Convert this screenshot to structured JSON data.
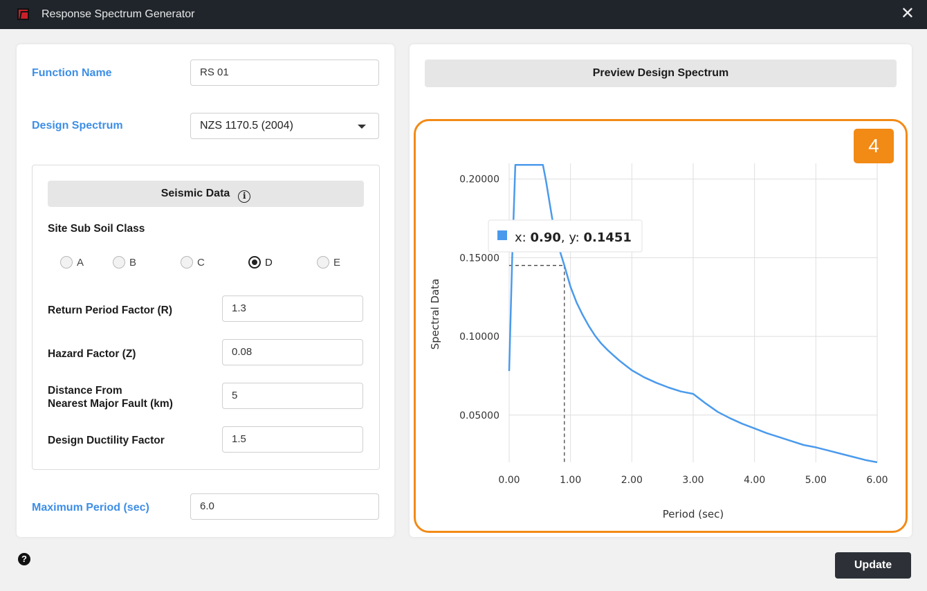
{
  "window": {
    "title": "Response Spectrum Generator",
    "close_glyph": "✕"
  },
  "form": {
    "function_name_label": "Function Name",
    "function_name_value": "RS 01",
    "design_spectrum_label": "Design Spectrum",
    "design_spectrum_value": "NZS 1170.5 (2004)",
    "seismic": {
      "header": "Seismic Data",
      "info_glyph": "i",
      "site_class_label": "Site Sub Soil Class",
      "site_classes": [
        "A",
        "B",
        "C",
        "D",
        "E"
      ],
      "selected_class": "D",
      "return_period_label": "Return Period Factor (R)",
      "return_period_value": "1.3",
      "hazard_label": "Hazard Factor (Z)",
      "hazard_value": "0.08",
      "distance_label_line1": "Distance From",
      "distance_label_line2": "Nearest Major Fault (km)",
      "distance_value": "5",
      "ductility_label": "Design Ductility Factor",
      "ductility_value": "1.5"
    },
    "max_period_label": "Maximum Period (sec)",
    "max_period_value": "6.0"
  },
  "preview": {
    "button_label": "Preview Design Spectrum",
    "badge": "4"
  },
  "footer": {
    "help_glyph": "?",
    "update_label": "Update"
  },
  "colors": {
    "accent_blue": "#3d8ee6",
    "line": "#4a9aec",
    "highlight": "#f28a16",
    "dark_button": "#2d3137"
  },
  "chart_data": {
    "type": "line",
    "xlabel": "Period (sec)",
    "ylabel": "Spectral Data",
    "xlim": [
      0,
      6
    ],
    "ylim": [
      0.02,
      0.21
    ],
    "x_ticks": [
      0,
      1,
      2,
      3,
      4,
      5,
      6
    ],
    "x_tick_labels": [
      "0.00",
      "1.00",
      "2.00",
      "3.00",
      "4.00",
      "5.00",
      "6.00"
    ],
    "y_ticks": [
      0.05,
      0.1,
      0.15,
      0.2
    ],
    "y_tick_labels": [
      "0.05000",
      "0.10000",
      "0.15000",
      "0.20000"
    ],
    "grid": true,
    "series": [
      {
        "x": [
          0,
          0.05,
          0.1,
          0.2,
          0.3,
          0.4,
          0.5,
          0.55,
          0.6,
          0.7,
          0.8,
          0.9,
          1.0,
          1.1,
          1.2,
          1.3,
          1.4,
          1.5,
          1.6,
          1.7,
          1.8,
          1.9,
          2.0,
          2.2,
          2.4,
          2.6,
          2.8,
          3.0,
          3.2,
          3.4,
          3.6,
          3.8,
          4.0,
          4.2,
          4.4,
          4.6,
          4.8,
          5.0,
          5.2,
          5.4,
          5.6,
          5.8,
          6.0
        ],
        "y": [
          0.078,
          0.15,
          0.209,
          0.209,
          0.209,
          0.209,
          0.209,
          0.209,
          0.199,
          0.1752,
          0.1577,
          0.1451,
          0.1315,
          0.1215,
          0.1135,
          0.1065,
          0.1005,
          0.0955,
          0.0915,
          0.088,
          0.0845,
          0.0815,
          0.0785,
          0.074,
          0.0705,
          0.0675,
          0.065,
          0.0635,
          0.0575,
          0.052,
          0.048,
          0.0445,
          0.0415,
          0.0385,
          0.036,
          0.0335,
          0.031,
          0.0295,
          0.0275,
          0.0255,
          0.0235,
          0.0215,
          0.02
        ]
      }
    ],
    "tooltip": {
      "x_prefix": "x: ",
      "x_value": "0.90",
      "separator": ", ",
      "y_prefix": "y: ",
      "y_value": "0.1451",
      "x": 0.9,
      "y": 0.1451
    }
  }
}
